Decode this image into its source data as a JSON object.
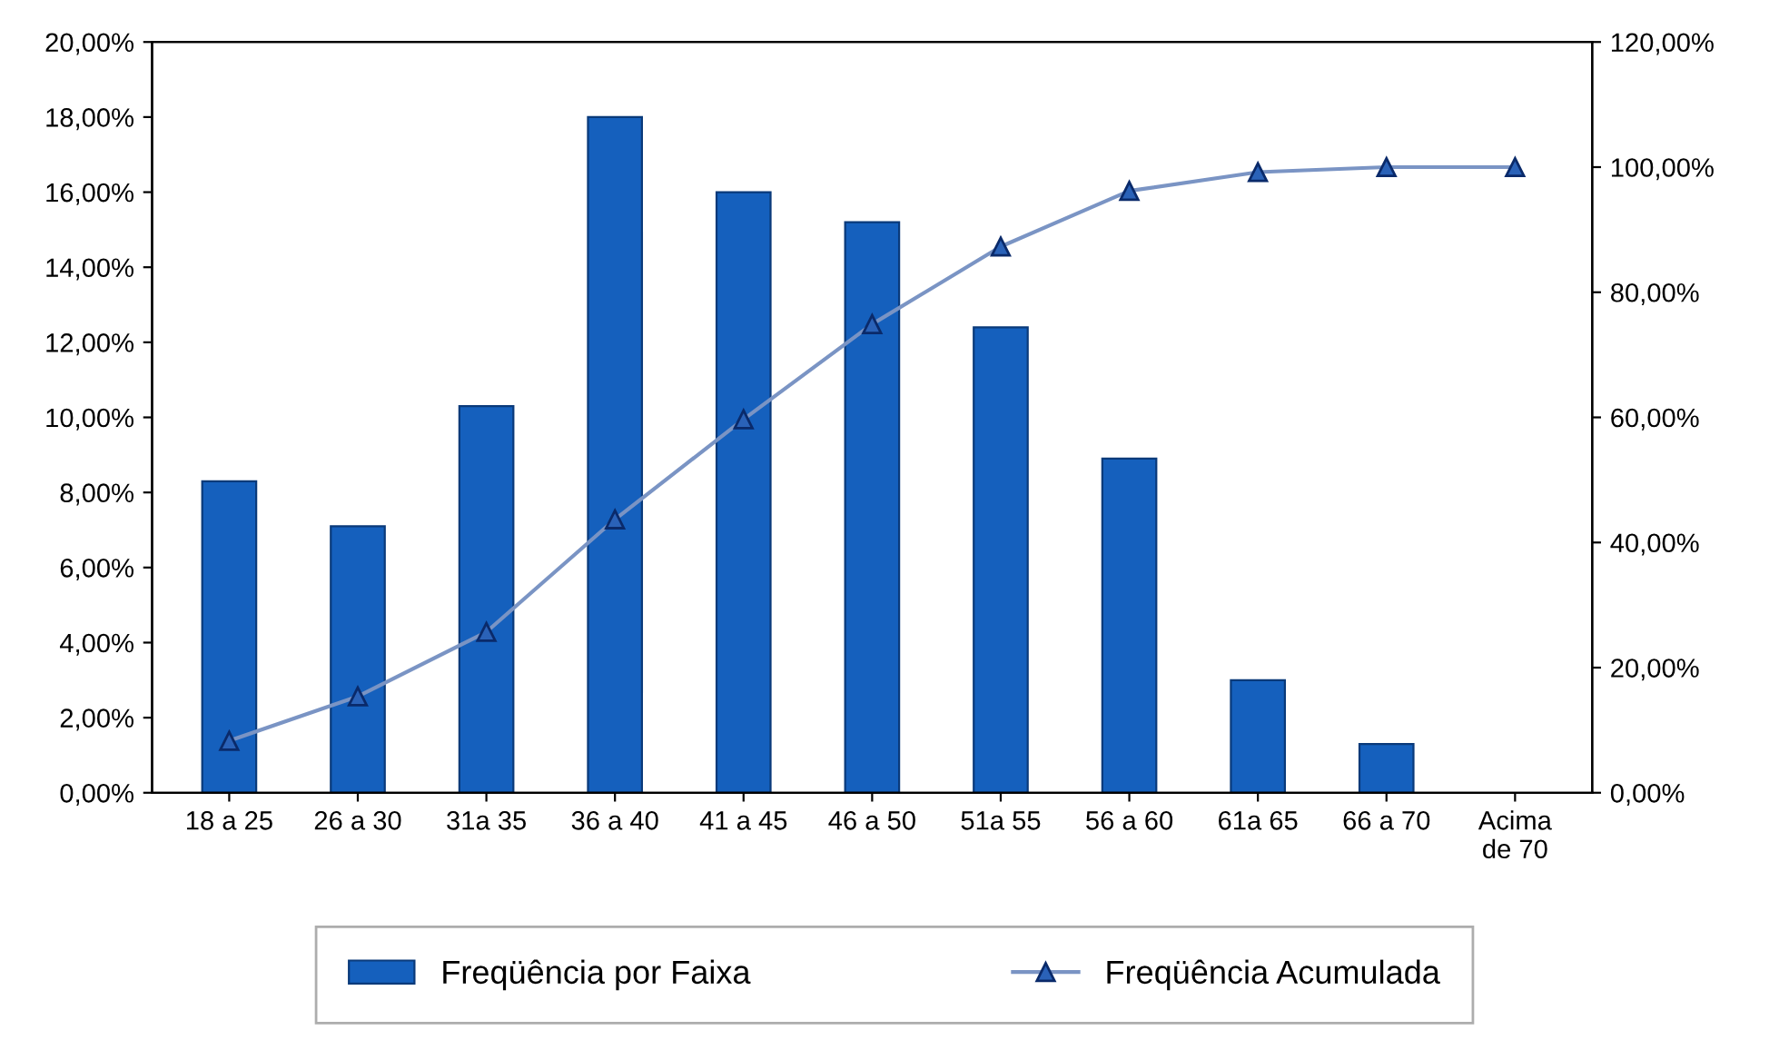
{
  "chart_data": {
    "type": "bar",
    "categories": [
      "18 a 25",
      "26 a 30",
      "31a 35",
      "36 a 40",
      "41 a 45",
      "46 a 50",
      "51a 55",
      "56 a 60",
      "61a 65",
      "66 a 70",
      "Acima\nde 70"
    ],
    "series": [
      {
        "name": "Freqüência por Faixa",
        "color": "#1560bd",
        "values": [
          8.3,
          7.1,
          10.3,
          18.0,
          16.0,
          15.2,
          12.4,
          8.9,
          3.0,
          1.3,
          null
        ]
      },
      {
        "name": "Freqüência Acumulada",
        "type": "line",
        "axis": "y2",
        "color": "#7a94c4",
        "marker": "triangle",
        "values": [
          8.3,
          15.4,
          25.7,
          43.7,
          59.7,
          74.9,
          87.3,
          96.2,
          99.2,
          100,
          100
        ]
      }
    ],
    "ylim": [
      0,
      20
    ],
    "yticks": [
      {
        "value": 0,
        "label": "0,00%"
      },
      {
        "value": 2,
        "label": "2,00%"
      },
      {
        "value": 4,
        "label": "4,00%"
      },
      {
        "value": 6,
        "label": "6,00%"
      },
      {
        "value": 8,
        "label": "8,00%"
      },
      {
        "value": 10,
        "label": "10,00%"
      },
      {
        "value": 12,
        "label": "12,00%"
      },
      {
        "value": 14,
        "label": "14,00%"
      },
      {
        "value": 16,
        "label": "16,00%"
      },
      {
        "value": 18,
        "label": "18,00%"
      },
      {
        "value": 20,
        "label": "20,00%"
      }
    ],
    "y2lim": [
      0,
      120
    ],
    "y2ticks": [
      {
        "value": 0,
        "label": "0,00%"
      },
      {
        "value": 20,
        "label": "20,00%"
      },
      {
        "value": 40,
        "label": "40,00%"
      },
      {
        "value": 60,
        "label": "60,00%"
      },
      {
        "value": 80,
        "label": "80,00%"
      },
      {
        "value": 100,
        "label": "100,00%"
      },
      {
        "value": 120,
        "label": "120,00%"
      }
    ],
    "grid": false,
    "legend": "bottom"
  }
}
